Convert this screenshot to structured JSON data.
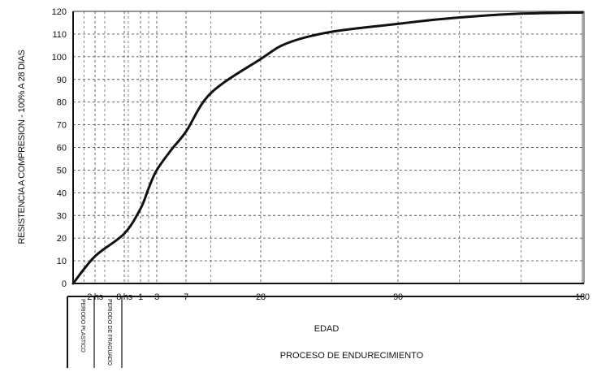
{
  "chart_data": {
    "type": "line",
    "ylabel": "RESISTENCIA A COMPRESION - 100% A 28 DIAS",
    "xlabel": "EDAD",
    "caption": "PROCESO DE ENDURECIMIENTO",
    "ylim": [
      0,
      120
    ],
    "yticks": [
      0,
      10,
      20,
      30,
      40,
      50,
      60,
      70,
      80,
      90,
      100,
      110,
      120
    ],
    "xticks": [
      {
        "label": "2 hs",
        "x": 0.0833
      },
      {
        "label": "8 hs",
        "x": 0.3333
      },
      {
        "label": "1",
        "x": 1
      },
      {
        "label": "3",
        "x": 3
      },
      {
        "label": "7",
        "x": 7
      },
      {
        "label": "28",
        "x": 28
      },
      {
        "label": "90",
        "x": 90
      },
      {
        "label": "180",
        "x": 180
      }
    ],
    "periods": [
      "PERIODO PLASTICO",
      "PERIODO DE FRAGUADO"
    ],
    "grid": true,
    "series": [
      {
        "x": [
          0,
          0.0833,
          0.3333,
          1,
          2,
          3,
          5,
          7,
          14,
          28,
          40,
          60,
          90,
          110,
          130,
          150,
          180
        ],
        "values": [
          0,
          12,
          22,
          33,
          42,
          50,
          59,
          67,
          84,
          99,
          106,
          111,
          114.5,
          116.5,
          118,
          119,
          119.5
        ]
      }
    ],
    "colors": {
      "line": "#111111",
      "grid": "#555555",
      "axis": "#111111"
    }
  }
}
